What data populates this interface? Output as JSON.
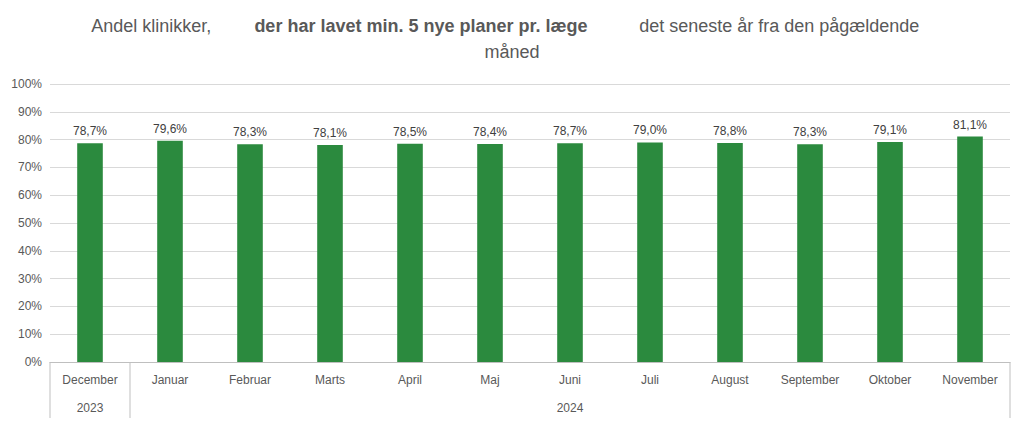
{
  "chart_data": {
    "type": "bar",
    "title": [
      "Andel klinikker, ",
      "der har lavet min. 5 nye planer pr. læge",
      " det seneste år fra den pågældende måned"
    ],
    "categories": [
      "December",
      "Januar",
      "Februar",
      "Marts",
      "April",
      "Maj",
      "Juni",
      "Juli",
      "August",
      "September",
      "Oktober",
      "November"
    ],
    "values": [
      78.7,
      79.6,
      78.3,
      78.1,
      78.5,
      78.4,
      78.7,
      79.0,
      78.8,
      78.3,
      79.1,
      81.1
    ],
    "value_labels": [
      "78,7%",
      "79,6%",
      "78,3%",
      "78,1%",
      "78,5%",
      "78,4%",
      "78,7%",
      "79,0%",
      "78,8%",
      "78,3%",
      "79,1%",
      "81,1%"
    ],
    "data_labels": true,
    "color": "#2b8a3e",
    "ylim": [
      0,
      100
    ],
    "yticks": [
      {
        "value": 0,
        "label": "0%"
      },
      {
        "value": 10,
        "label": "10%"
      },
      {
        "value": 20,
        "label": "20%"
      },
      {
        "value": 30,
        "label": "30%"
      },
      {
        "value": 40,
        "label": "40%"
      },
      {
        "value": 50,
        "label": "50%"
      },
      {
        "value": 60,
        "label": "60%"
      },
      {
        "value": 70,
        "label": "70%"
      },
      {
        "value": 80,
        "label": "80%"
      },
      {
        "value": 90,
        "label": "90%"
      },
      {
        "value": 100,
        "label": "100%"
      }
    ],
    "grid": true,
    "annotations": [
      {
        "text": "2023",
        "from": "December",
        "to": "December"
      },
      {
        "text": "2024",
        "from": "Januar",
        "to": "November"
      }
    ]
  }
}
